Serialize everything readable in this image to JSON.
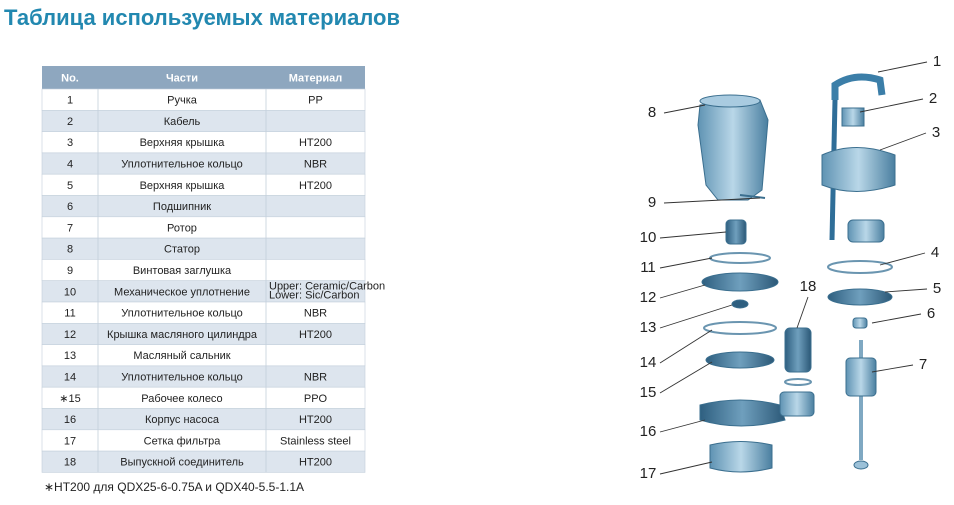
{
  "header": {
    "title": "Таблица используемых материалов"
  },
  "table": {
    "headers": [
      "No.",
      "Части",
      "Материал"
    ],
    "rows": [
      [
        "1",
        "Ручка",
        "PP"
      ],
      [
        "2",
        "Кабель"
      ],
      [
        "3",
        "Верхняя крышка",
        "HT200"
      ],
      [
        "4",
        "Уплотнительное кольцо",
        "NBR"
      ],
      [
        "5",
        "Верхняя крышка",
        "HT200"
      ],
      [
        "6",
        "Подшипник"
      ],
      [
        "7",
        "Ротор"
      ],
      [
        "8",
        "Статор"
      ],
      [
        "9",
        "Винтовая заглушка"
      ],
      [
        "10",
        "Механическое уплотнение",
        [
          "Upper: Ceramic/Carbon",
          "Lower: Sic/Carbon"
        ]
      ],
      [
        "11",
        "Уплотнительное кольцо",
        "NBR"
      ],
      [
        "12",
        "Крышка масляного цилиндра",
        "HT200"
      ],
      [
        "13",
        "Масляный сальник"
      ],
      [
        "14",
        "Уплотнительное кольцо",
        "NBR"
      ],
      [
        "∗15",
        "Рабочее колесо",
        "PPO"
      ],
      [
        "16",
        "Корпус насоса",
        "HT200"
      ],
      [
        "17",
        "Сетка фильтра",
        "Stainless steel"
      ],
      [
        "18",
        "Выпускной соединитель",
        "HT200"
      ]
    ],
    "footnote": "∗HT200 для QDX25-6-0.75A и QDX40-5.5-1.1A"
  },
  "diagram": {
    "callouts": [
      "1",
      "2",
      "3",
      "4",
      "5",
      "6",
      "7",
      "8",
      "9",
      "10",
      "11",
      "12",
      "13",
      "14",
      "15",
      "16",
      "17",
      "18"
    ]
  }
}
